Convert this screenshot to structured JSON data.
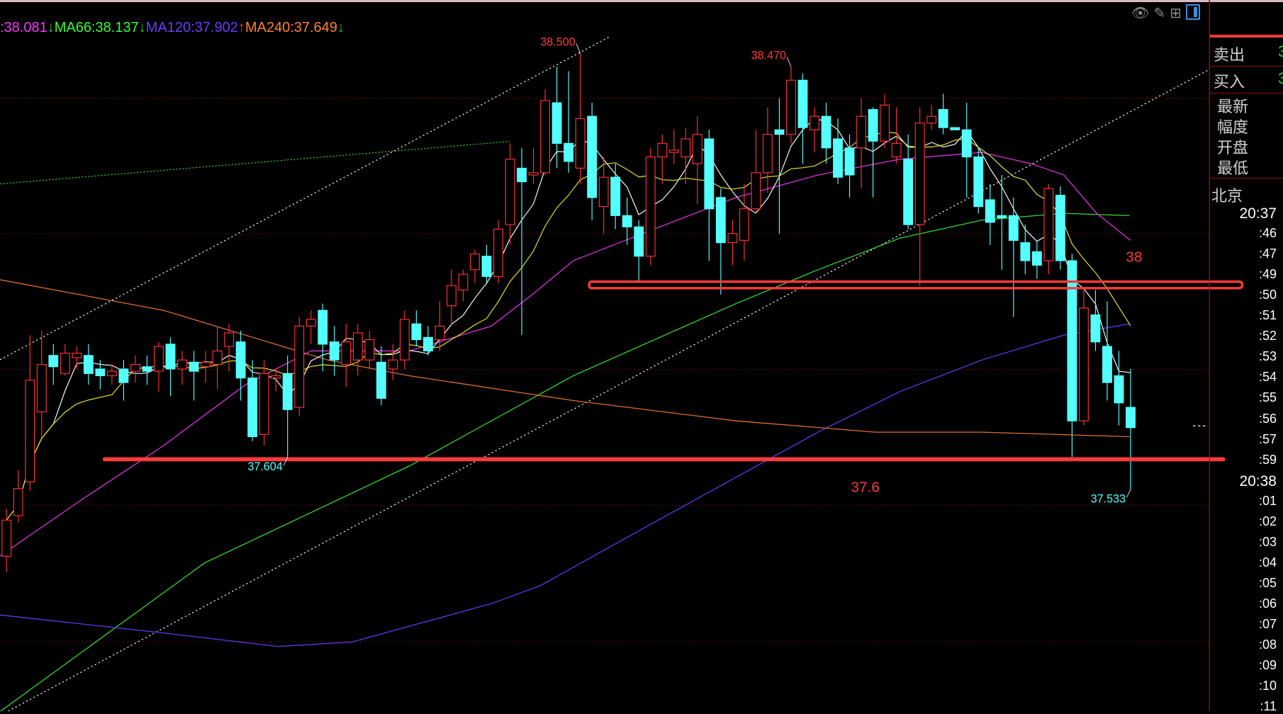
{
  "legend": [
    {
      "text": ":38.081",
      "color": "#ff33ff",
      "arrow": "↓",
      "arrow_color": "#33cc33"
    },
    {
      "text": "MA66:38.137",
      "color": "#33ff33",
      "arrow": "↓",
      "arrow_color": "#33cc33"
    },
    {
      "text": "MA120:37.902",
      "color": "#6a3cff",
      "arrow": "↑",
      "arrow_color": "#ff3333"
    },
    {
      "text": "MA240:37.649",
      "color": "#ff8030",
      "arrow": "↓",
      "arrow_color": "#33cc33"
    }
  ],
  "toolbar": {
    "icons": [
      "eye-slash-icon",
      "pencil-icon",
      "grid-icon",
      "panel-icon"
    ]
  },
  "side_panel": {
    "sell_label": "卖出",
    "sell_value": "3",
    "buy_label": "买入",
    "buy_value": "3",
    "fields": [
      "最新",
      "幅度",
      "开盘",
      "最低"
    ],
    "timezone": "北京",
    "times": [
      "20:37",
      ":46",
      ":47",
      ":49",
      ":50",
      ":51",
      ":52",
      ":53",
      ":54",
      ":55",
      ":56",
      ":57",
      ":59",
      "20:38",
      ":01",
      ":02",
      ":03",
      ":04",
      ":05",
      ":06",
      ":07",
      ":08",
      ":09",
      ":10",
      ":11"
    ]
  },
  "chart_data": {
    "type": "candlestick",
    "up_color": "#ff3232",
    "down_color": "#54ffff",
    "grid": true,
    "candles": [
      [
        37.385,
        37.49,
        37.35,
        37.465
      ],
      [
        37.475,
        37.575,
        37.46,
        37.535
      ],
      [
        37.55,
        37.875,
        37.53,
        37.775
      ],
      [
        37.705,
        37.885,
        37.65,
        37.81
      ],
      [
        37.83,
        37.855,
        37.765,
        37.805
      ],
      [
        37.79,
        37.855,
        37.785,
        37.835
      ],
      [
        37.825,
        37.85,
        37.8,
        37.835
      ],
      [
        37.83,
        37.855,
        37.765,
        37.79
      ],
      [
        37.8,
        37.82,
        37.755,
        37.785
      ],
      [
        37.785,
        37.81,
        37.765,
        37.795
      ],
      [
        37.8,
        37.82,
        37.73,
        37.77
      ],
      [
        37.795,
        37.83,
        37.77,
        37.81
      ],
      [
        37.805,
        37.83,
        37.765,
        37.795
      ],
      [
        37.795,
        37.86,
        37.75,
        37.85
      ],
      [
        37.855,
        37.87,
        37.74,
        37.8
      ],
      [
        37.8,
        37.84,
        37.765,
        37.82
      ],
      [
        37.815,
        37.84,
        37.73,
        37.795
      ],
      [
        37.805,
        37.84,
        37.77,
        37.815
      ],
      [
        37.81,
        37.895,
        37.755,
        37.84
      ],
      [
        37.85,
        37.9,
        37.795,
        37.88
      ],
      [
        37.86,
        37.885,
        37.73,
        37.78
      ],
      [
        37.78,
        37.82,
        37.64,
        37.65
      ],
      [
        37.655,
        37.82,
        37.63,
        37.79
      ],
      [
        37.78,
        37.8,
        37.75,
        37.785
      ],
      [
        37.79,
        37.83,
        37.604,
        37.71
      ],
      [
        37.715,
        37.915,
        37.695,
        37.895
      ],
      [
        37.895,
        37.93,
        37.855,
        37.91
      ],
      [
        37.93,
        37.945,
        37.795,
        37.855
      ],
      [
        37.86,
        37.895,
        37.785,
        37.82
      ],
      [
        37.81,
        37.9,
        37.76,
        37.86
      ],
      [
        37.82,
        37.9,
        37.785,
        37.88
      ],
      [
        37.82,
        37.885,
        37.8,
        37.865
      ],
      [
        37.815,
        37.85,
        37.72,
        37.735
      ],
      [
        37.8,
        37.855,
        37.775,
        37.82
      ],
      [
        37.82,
        37.93,
        37.8,
        37.91
      ],
      [
        37.9,
        37.93,
        37.85,
        37.865
      ],
      [
        37.87,
        37.895,
        37.83,
        37.84
      ],
      [
        37.865,
        37.95,
        37.84,
        37.895
      ],
      [
        37.94,
        38.02,
        37.895,
        37.985
      ],
      [
        37.975,
        38.02,
        37.95,
        38.01
      ],
      [
        38.02,
        38.065,
        37.99,
        38.055
      ],
      [
        38.05,
        38.075,
        37.99,
        38.005
      ],
      [
        38.005,
        38.13,
        37.99,
        38.11
      ],
      [
        38.12,
        38.3,
        38.075,
        38.265
      ],
      [
        38.245,
        38.29,
        37.875,
        38.215
      ],
      [
        38.23,
        38.29,
        38.21,
        38.235
      ],
      [
        38.235,
        38.42,
        38.23,
        38.395
      ],
      [
        38.39,
        38.47,
        38.245,
        38.3
      ],
      [
        38.3,
        38.46,
        38.235,
        38.26
      ],
      [
        38.245,
        38.5,
        38.21,
        38.355
      ],
      [
        38.36,
        38.39,
        38.13,
        38.18
      ],
      [
        38.16,
        38.27,
        38.1,
        38.225
      ],
      [
        38.225,
        38.255,
        38.11,
        38.14
      ],
      [
        38.14,
        38.18,
        38.075,
        38.115
      ],
      [
        38.115,
        38.13,
        37.995,
        38.05
      ],
      [
        38.05,
        38.29,
        38.03,
        38.27
      ],
      [
        38.27,
        38.32,
        38.21,
        38.3
      ],
      [
        38.28,
        38.33,
        38.255,
        38.285
      ],
      [
        38.27,
        38.335,
        38.21,
        38.31
      ],
      [
        38.255,
        38.36,
        38.165,
        38.32
      ],
      [
        38.31,
        38.33,
        38.04,
        38.155
      ],
      [
        38.18,
        38.2,
        37.965,
        38.08
      ],
      [
        38.08,
        38.13,
        38.03,
        38.1
      ],
      [
        38.085,
        38.21,
        38.04,
        38.155
      ],
      [
        38.155,
        38.33,
        38.145,
        38.235
      ],
      [
        38.235,
        38.38,
        38.19,
        38.32
      ],
      [
        38.33,
        38.4,
        38.1,
        38.32
      ],
      [
        38.32,
        38.47,
        38.3,
        38.44
      ],
      [
        38.44,
        38.455,
        38.255,
        38.335
      ],
      [
        38.33,
        38.38,
        38.28,
        38.36
      ],
      [
        38.36,
        38.39,
        38.255,
        38.29
      ],
      [
        38.31,
        38.355,
        38.21,
        38.225
      ],
      [
        38.29,
        38.32,
        38.18,
        38.23
      ],
      [
        38.29,
        38.4,
        38.2,
        38.36
      ],
      [
        38.375,
        38.38,
        38.18,
        38.305
      ],
      [
        38.305,
        38.41,
        38.29,
        38.385
      ],
      [
        38.27,
        38.38,
        38.255,
        38.3
      ],
      [
        38.265,
        38.32,
        38.11,
        38.12
      ],
      [
        38.12,
        38.38,
        37.985,
        38.345
      ],
      [
        38.345,
        38.385,
        38.33,
        38.36
      ],
      [
        38.375,
        38.41,
        38.32,
        38.335
      ],
      [
        38.335,
        38.335,
        38.33,
        38.33
      ],
      [
        38.33,
        38.39,
        38.18,
        38.27
      ],
      [
        38.27,
        38.29,
        38.145,
        38.16
      ],
      [
        38.175,
        38.21,
        38.075,
        38.125
      ],
      [
        38.14,
        38.23,
        38.02,
        38.135
      ],
      [
        38.14,
        38.18,
        37.915,
        38.085
      ],
      [
        38.08,
        38.12,
        38.01,
        38.04
      ],
      [
        38.06,
        38.085,
        38.0,
        38.03
      ],
      [
        38.04,
        38.21,
        38.01,
        38.2
      ],
      [
        38.185,
        38.205,
        38.02,
        38.04
      ],
      [
        38.04,
        38.055,
        37.605,
        37.685
      ],
      [
        37.685,
        37.975,
        37.675,
        37.935
      ],
      [
        37.92,
        37.975,
        37.84,
        37.86
      ],
      [
        37.85,
        37.95,
        37.73,
        37.77
      ],
      [
        37.785,
        37.84,
        37.675,
        37.725
      ],
      [
        37.715,
        37.8,
        37.533,
        37.67
      ]
    ],
    "ma_lines": [
      {
        "name": "MA66",
        "color": "#33dd33",
        "points": [
          [
            -0.6,
            37.04
          ],
          [
            16.9,
            37.37
          ],
          [
            34.4,
            37.585
          ],
          [
            48.4,
            37.785
          ],
          [
            62.3,
            37.945
          ],
          [
            69.3,
            38.02
          ],
          [
            76.3,
            38.09
          ],
          [
            83.3,
            38.13
          ],
          [
            90.3,
            38.145
          ],
          [
            95.9,
            38.14
          ]
        ]
      },
      {
        "name": "MA120",
        "color": "#5a3cf0",
        "points": [
          [
            -0.6,
            37.255
          ],
          [
            13.4,
            37.215
          ],
          [
            23.2,
            37.185
          ],
          [
            29.5,
            37.195
          ],
          [
            41.4,
            37.28
          ],
          [
            45.6,
            37.32
          ],
          [
            55.3,
            37.46
          ],
          [
            62.3,
            37.56
          ],
          [
            69.3,
            37.66
          ],
          [
            76.3,
            37.75
          ],
          [
            83.3,
            37.82
          ],
          [
            90.3,
            37.875
          ],
          [
            95.9,
            37.9
          ]
        ]
      },
      {
        "name": "MA240",
        "color": "#e0702a",
        "points": [
          [
            -0.6,
            37.998
          ],
          [
            13.4,
            37.93
          ],
          [
            27.4,
            37.82
          ],
          [
            34.4,
            37.785
          ],
          [
            48.4,
            37.73
          ],
          [
            62.3,
            37.685
          ],
          [
            74.2,
            37.66
          ],
          [
            83.3,
            37.66
          ],
          [
            95.9,
            37.65
          ]
        ]
      },
      {
        "name": "",
        "color": "#e033e0",
        "points": [
          [
            -0.6,
            37.385
          ],
          [
            6.4,
            37.51
          ],
          [
            13.4,
            37.63
          ],
          [
            20.4,
            37.765
          ],
          [
            26,
            37.84
          ],
          [
            34.4,
            37.84
          ],
          [
            41.4,
            37.895
          ],
          [
            44.9,
            37.965
          ],
          [
            48.4,
            38.04
          ],
          [
            55.3,
            38.11
          ],
          [
            62.3,
            38.18
          ],
          [
            69.3,
            38.23
          ],
          [
            76.3,
            38.265
          ],
          [
            83.3,
            38.28
          ],
          [
            87.5,
            38.255
          ],
          [
            90.3,
            38.23
          ],
          [
            93.1,
            38.145
          ],
          [
            96,
            38.085
          ]
        ]
      }
    ],
    "computed_ma": [
      {
        "period": 5,
        "color": "#ffffff"
      },
      {
        "period": 10,
        "color": "#e8e830"
      }
    ],
    "support_line": {
      "price": 37.6,
      "label": "37.6",
      "color": "#ff3a3a"
    },
    "resistance_box": {
      "price": 37.99,
      "label": "38",
      "color": "#ff3a3a"
    },
    "annotations": [
      {
        "text": "38.500",
        "price": 38.5,
        "index": 49,
        "color": "#ff3a3a"
      },
      {
        "text": "38.470",
        "price": 38.47,
        "index": 67,
        "color": "#ff3a3a"
      },
      {
        "text": "37.604",
        "price": 37.604,
        "index": 24,
        "color": "#54ffff"
      },
      {
        "text": "37.533",
        "price": 37.533,
        "index": 96,
        "color": "#54ffff"
      }
    ]
  }
}
